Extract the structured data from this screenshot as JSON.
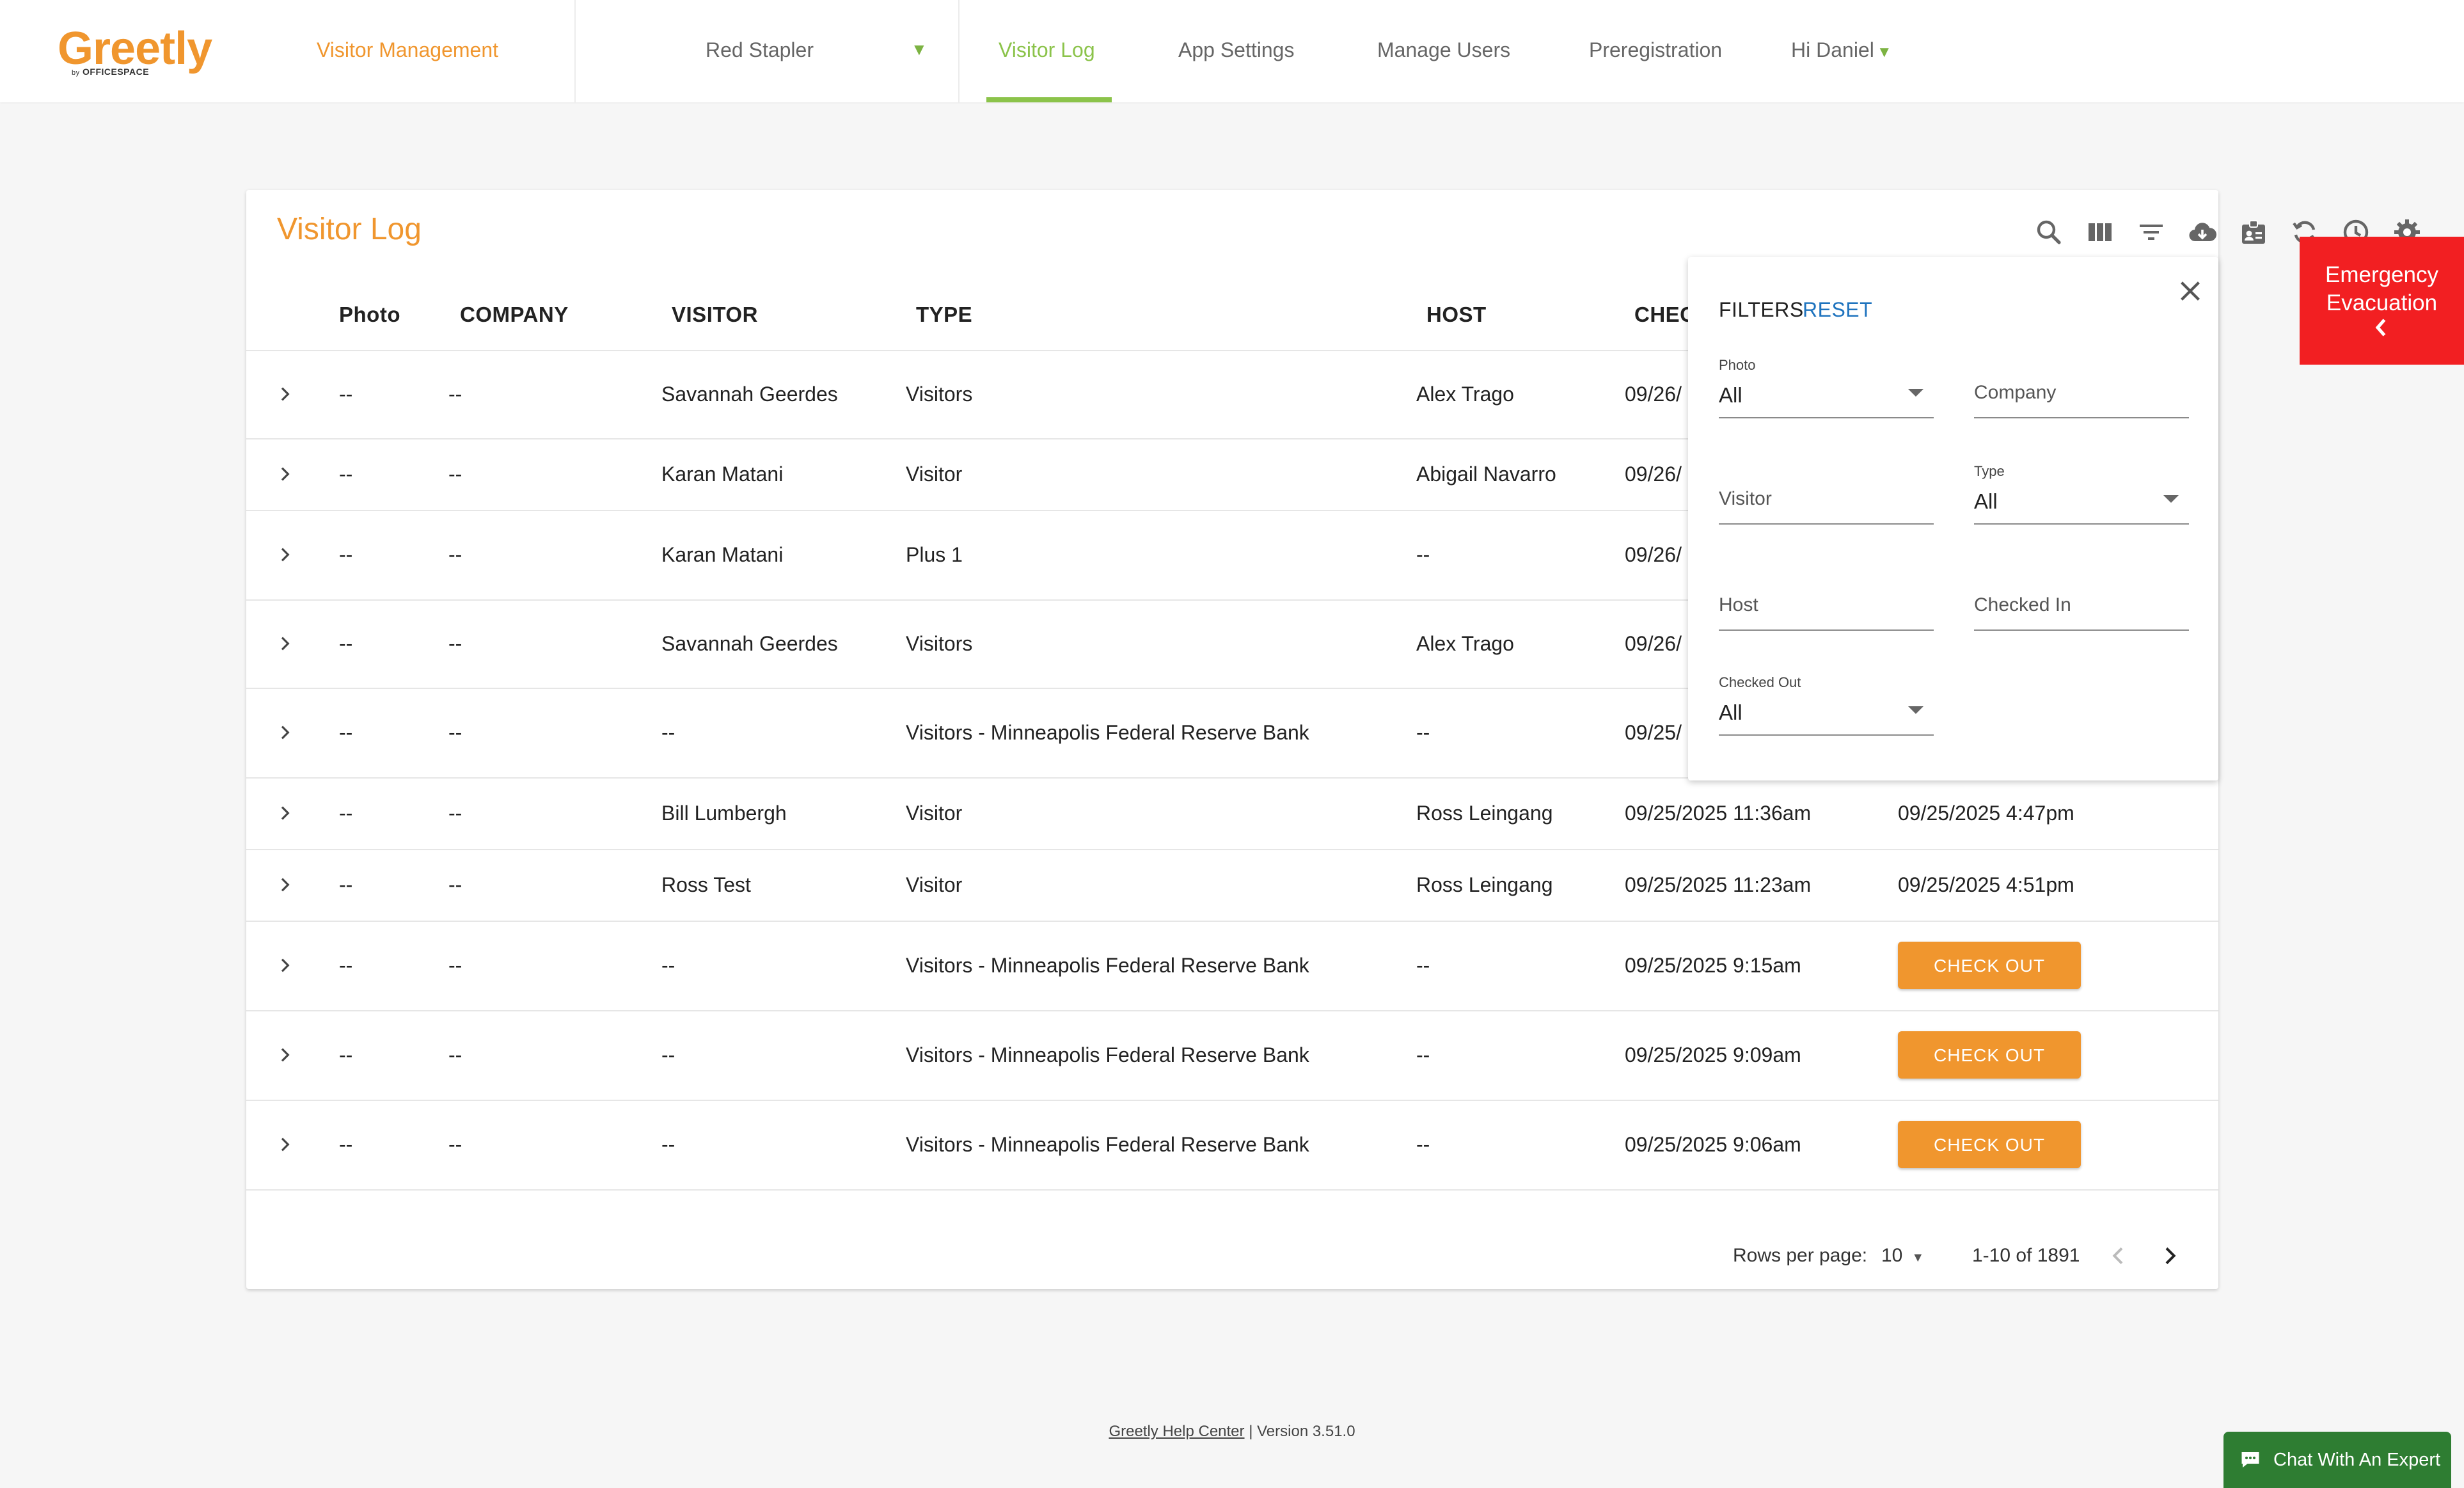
{
  "app": {
    "logo_text": "Greetly",
    "logo_sub_by": "by",
    "logo_sub_brand": "OFFICESPACE"
  },
  "nav": {
    "visitor_management": "Visitor Management",
    "location": "Red Stapler",
    "visitor_log": "Visitor Log",
    "app_settings": "App Settings",
    "manage_users": "Manage Users",
    "preregistration": "Preregistration",
    "greeting": "Hi Daniel"
  },
  "card": {
    "title": "Visitor Log",
    "toolbar_icons": [
      "search-icon",
      "columns-icon",
      "filter-icon",
      "cloud-download-icon",
      "badge-icon",
      "refresh-icon",
      "history-icon",
      "gear-icon"
    ]
  },
  "table": {
    "headers": {
      "photo": "Photo",
      "company": "COMPANY",
      "visitor": "VISITOR",
      "type": "TYPE",
      "host": "HOST",
      "checked_in": "CHEC"
    },
    "rows": [
      {
        "photo": "--",
        "company": "--",
        "visitor": "Savannah Geerdes",
        "type": "Visitors",
        "host": "Alex Trago",
        "checked_in": "09/26/",
        "checked_out": ""
      },
      {
        "photo": "--",
        "company": "--",
        "visitor": "Karan Matani",
        "type": "Visitor",
        "host": "Abigail Navarro",
        "checked_in": "09/26/",
        "checked_out": ""
      },
      {
        "photo": "--",
        "company": "--",
        "visitor": "Karan Matani",
        "type": "Plus 1",
        "host": "--",
        "checked_in": "09/26/",
        "checked_out": ""
      },
      {
        "photo": "--",
        "company": "--",
        "visitor": "Savannah Geerdes",
        "type": "Visitors",
        "host": "Alex Trago",
        "checked_in": "09/26/",
        "checked_out": ""
      },
      {
        "photo": "--",
        "company": "--",
        "visitor": "--",
        "type": "Visitors - Minneapolis Federal Reserve Bank",
        "host": "--",
        "checked_in": "09/25/",
        "checked_out": ""
      },
      {
        "photo": "--",
        "company": "--",
        "visitor": "Bill Lumbergh",
        "type": "Visitor",
        "host": "Ross Leingang",
        "checked_in": "09/25/2025 11:36am",
        "checked_out": "09/25/2025 4:47pm"
      },
      {
        "photo": "--",
        "company": "--",
        "visitor": "Ross Test",
        "type": "Visitor",
        "host": "Ross Leingang",
        "checked_in": "09/25/2025 11:23am",
        "checked_out": "09/25/2025 4:51pm"
      },
      {
        "photo": "--",
        "company": "--",
        "visitor": "--",
        "type": "Visitors - Minneapolis Federal Reserve Bank",
        "host": "--",
        "checked_in": "09/25/2025 9:15am",
        "checked_out": "CHECK OUT"
      },
      {
        "photo": "--",
        "company": "--",
        "visitor": "--",
        "type": "Visitors - Minneapolis Federal Reserve Bank",
        "host": "--",
        "checked_in": "09/25/2025 9:09am",
        "checked_out": "CHECK OUT"
      },
      {
        "photo": "--",
        "company": "--",
        "visitor": "--",
        "type": "Visitors - Minneapolis Federal Reserve Bank",
        "host": "--",
        "checked_in": "09/25/2025 9:06am",
        "checked_out": "CHECK OUT"
      }
    ],
    "checkout_label": "CHECK OUT"
  },
  "pagination": {
    "rows_per_page_label": "Rows per page:",
    "rows_per_page": "10",
    "range": "1-10 of 1891"
  },
  "filters": {
    "title": "FILTERS",
    "reset": "RESET",
    "photo_label": "Photo",
    "photo_value": "All",
    "company_placeholder": "Company",
    "visitor_placeholder": "Visitor",
    "type_label": "Type",
    "type_value": "All",
    "host_placeholder": "Host",
    "checked_in_placeholder": "Checked In",
    "checked_out_label": "Checked Out",
    "checked_out_value": "All"
  },
  "emergency": {
    "line1": "Emergency",
    "line2": "Evacuation"
  },
  "footer": {
    "help_center": "Greetly Help Center",
    "separator": " | ",
    "version": "Version 3.51.0"
  },
  "chat": {
    "label": "Chat With An Expert"
  },
  "colors": {
    "brand_orange": "#f0962e",
    "nav_green": "#8bc34a",
    "link_blue": "#1e73be",
    "emergency_red": "#f21f22",
    "chat_green": "#2e7d32"
  }
}
